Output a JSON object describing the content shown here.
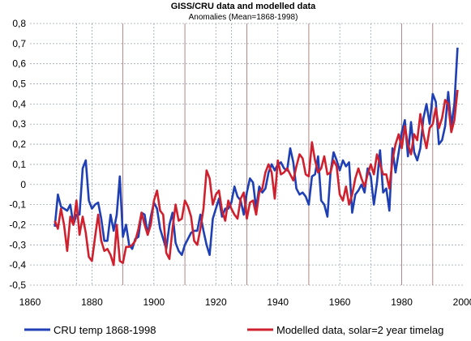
{
  "chart_data": {
    "type": "line",
    "title": "GISS/CRU data and modelled data",
    "subtitle": "Anomalies (Mean=1868-1998)",
    "xlabel": "",
    "ylabel": "",
    "xlim": [
      1860,
      2000
    ],
    "ylim": [
      -0.5,
      0.8
    ],
    "x_ticks": [
      "1860",
      "1880",
      "1900",
      "1920",
      "1940",
      "1960",
      "1980",
      "2000"
    ],
    "y_ticks": [
      "-0,5",
      "-0,4",
      "-0,3",
      "-0,2",
      "-0,1",
      "0",
      "0,1",
      "0,2",
      "0,3",
      "0,4",
      "0,5",
      "0,6",
      "0,7",
      "0,8"
    ],
    "grid": true,
    "legend_position": "bottom",
    "series": [
      {
        "name": "CRU temp 1868-1998",
        "color": "#1f3fb4",
        "x": [
          1868,
          1869,
          1870,
          1871,
          1872,
          1873,
          1874,
          1875,
          1876,
          1877,
          1878,
          1879,
          1880,
          1881,
          1882,
          1883,
          1884,
          1885,
          1886,
          1887,
          1888,
          1889,
          1890,
          1891,
          1892,
          1893,
          1894,
          1895,
          1896,
          1897,
          1898,
          1899,
          1900,
          1901,
          1902,
          1903,
          1904,
          1905,
          1906,
          1907,
          1908,
          1909,
          1910,
          1911,
          1912,
          1913,
          1914,
          1915,
          1916,
          1917,
          1918,
          1919,
          1920,
          1921,
          1922,
          1923,
          1924,
          1925,
          1926,
          1927,
          1928,
          1929,
          1930,
          1931,
          1932,
          1933,
          1934,
          1935,
          1936,
          1937,
          1938,
          1939,
          1940,
          1941,
          1942,
          1943,
          1944,
          1945,
          1946,
          1947,
          1948,
          1949,
          1950,
          1951,
          1952,
          1953,
          1954,
          1955,
          1956,
          1957,
          1958,
          1959,
          1960,
          1961,
          1962,
          1963,
          1964,
          1965,
          1966,
          1967,
          1968,
          1969,
          1970,
          1971,
          1972,
          1973,
          1974,
          1975,
          1976,
          1977,
          1978,
          1979,
          1980,
          1981,
          1982,
          1983,
          1984,
          1985,
          1986,
          1987,
          1988,
          1989,
          1990,
          1991,
          1992,
          1993,
          1994,
          1995,
          1996,
          1997,
          1998
        ],
        "values": [
          -0.21,
          -0.05,
          -0.11,
          -0.12,
          -0.13,
          -0.1,
          -0.2,
          -0.15,
          -0.15,
          0.08,
          0.12,
          -0.08,
          -0.12,
          -0.1,
          -0.09,
          -0.17,
          -0.28,
          -0.28,
          -0.15,
          -0.23,
          -0.15,
          0.04,
          -0.26,
          -0.2,
          -0.3,
          -0.32,
          -0.27,
          -0.26,
          -0.14,
          -0.15,
          -0.25,
          -0.16,
          -0.09,
          -0.12,
          -0.22,
          -0.27,
          -0.32,
          -0.2,
          -0.14,
          -0.29,
          -0.33,
          -0.35,
          -0.3,
          -0.27,
          -0.24,
          -0.23,
          -0.23,
          -0.15,
          -0.23,
          -0.3,
          -0.35,
          -0.17,
          -0.12,
          -0.07,
          -0.16,
          -0.12,
          -0.12,
          -0.09,
          -0.01,
          -0.06,
          -0.08,
          -0.15,
          -0.04,
          0.03,
          0.01,
          -0.12,
          -0.01,
          -0.04,
          -0.02,
          0.06,
          0.1,
          0.07,
          0.1,
          0.11,
          0.08,
          0.07,
          0.18,
          0.11,
          -0.02,
          -0.05,
          -0.04,
          -0.06,
          -0.1,
          0.04,
          0.05,
          0.14,
          -0.08,
          -0.1,
          -0.16,
          0.06,
          0.16,
          0.12,
          0.07,
          0.12,
          0.09,
          0.11,
          -0.14,
          -0.05,
          -0.03,
          0.0,
          -0.04,
          0.08,
          0.04,
          -0.1,
          0.01,
          0.17,
          -0.04,
          -0.02,
          -0.13,
          0.18,
          0.06,
          0.16,
          0.26,
          0.32,
          0.14,
          0.31,
          0.16,
          0.12,
          0.18,
          0.33,
          0.4,
          0.3,
          0.45,
          0.41,
          0.2,
          0.22,
          0.29,
          0.46,
          0.29,
          0.4,
          0.68
        ]
      },
      {
        "name": "Modelled data, solar=2 year timelag",
        "color": "#d0202e",
        "x": [
          1868,
          1869,
          1870,
          1871,
          1872,
          1873,
          1874,
          1875,
          1876,
          1877,
          1878,
          1879,
          1880,
          1881,
          1882,
          1883,
          1884,
          1885,
          1886,
          1887,
          1888,
          1889,
          1890,
          1891,
          1892,
          1893,
          1894,
          1895,
          1896,
          1897,
          1898,
          1899,
          1900,
          1901,
          1902,
          1903,
          1904,
          1905,
          1906,
          1907,
          1908,
          1909,
          1910,
          1911,
          1912,
          1913,
          1914,
          1915,
          1916,
          1917,
          1918,
          1919,
          1920,
          1921,
          1922,
          1923,
          1924,
          1925,
          1926,
          1927,
          1928,
          1929,
          1930,
          1931,
          1932,
          1933,
          1934,
          1935,
          1936,
          1937,
          1938,
          1939,
          1940,
          1941,
          1942,
          1943,
          1944,
          1945,
          1946,
          1947,
          1948,
          1949,
          1950,
          1951,
          1952,
          1953,
          1954,
          1955,
          1956,
          1957,
          1958,
          1959,
          1960,
          1961,
          1962,
          1963,
          1964,
          1965,
          1966,
          1967,
          1968,
          1969,
          1970,
          1971,
          1972,
          1973,
          1974,
          1975,
          1976,
          1977,
          1978,
          1979,
          1980,
          1981,
          1982,
          1983,
          1984,
          1985,
          1986,
          1987,
          1988,
          1989,
          1990,
          1991,
          1992,
          1993,
          1994,
          1995,
          1996,
          1997,
          1998
        ],
        "values": [
          -0.18,
          -0.22,
          -0.12,
          -0.2,
          -0.33,
          -0.16,
          -0.2,
          -0.08,
          -0.25,
          -0.16,
          -0.24,
          -0.36,
          -0.38,
          -0.26,
          -0.15,
          -0.28,
          -0.33,
          -0.32,
          -0.35,
          -0.4,
          -0.2,
          -0.38,
          -0.39,
          -0.31,
          -0.31,
          -0.3,
          -0.28,
          -0.22,
          -0.14,
          -0.2,
          -0.25,
          -0.2,
          -0.08,
          -0.03,
          -0.13,
          -0.15,
          -0.34,
          -0.37,
          -0.22,
          -0.1,
          -0.18,
          -0.17,
          -0.08,
          -0.11,
          -0.16,
          -0.28,
          -0.3,
          -0.22,
          -0.12,
          0.07,
          0.03,
          -0.1,
          -0.05,
          -0.03,
          -0.13,
          -0.18,
          -0.08,
          -0.12,
          -0.15,
          -0.17,
          -0.07,
          -0.04,
          -0.17,
          -0.09,
          -0.08,
          -0.15,
          -0.04,
          -0.02,
          0.06,
          0.1,
          0.06,
          -0.07,
          0.12,
          0.05,
          0.06,
          0.08,
          0.05,
          0.02,
          0.09,
          0.15,
          0.13,
          0.05,
          0.04,
          0.21,
          0.12,
          0.06,
          0.08,
          0.14,
          0.05,
          0.06,
          0.12,
          0.09,
          -0.05,
          -0.08,
          -0.01,
          -0.1,
          -0.05,
          0.03,
          0.08,
          0.03,
          -0.01,
          0.05,
          0.1,
          0.05,
          0.15,
          0.1,
          0.05,
          0.05,
          -0.02,
          0.12,
          0.2,
          0.25,
          0.18,
          0.29,
          0.2,
          0.15,
          0.25,
          0.22,
          0.35,
          0.25,
          0.18,
          0.28,
          0.3,
          0.38,
          0.28,
          0.33,
          0.42,
          0.4,
          0.26,
          0.32,
          0.47
        ]
      }
    ]
  }
}
